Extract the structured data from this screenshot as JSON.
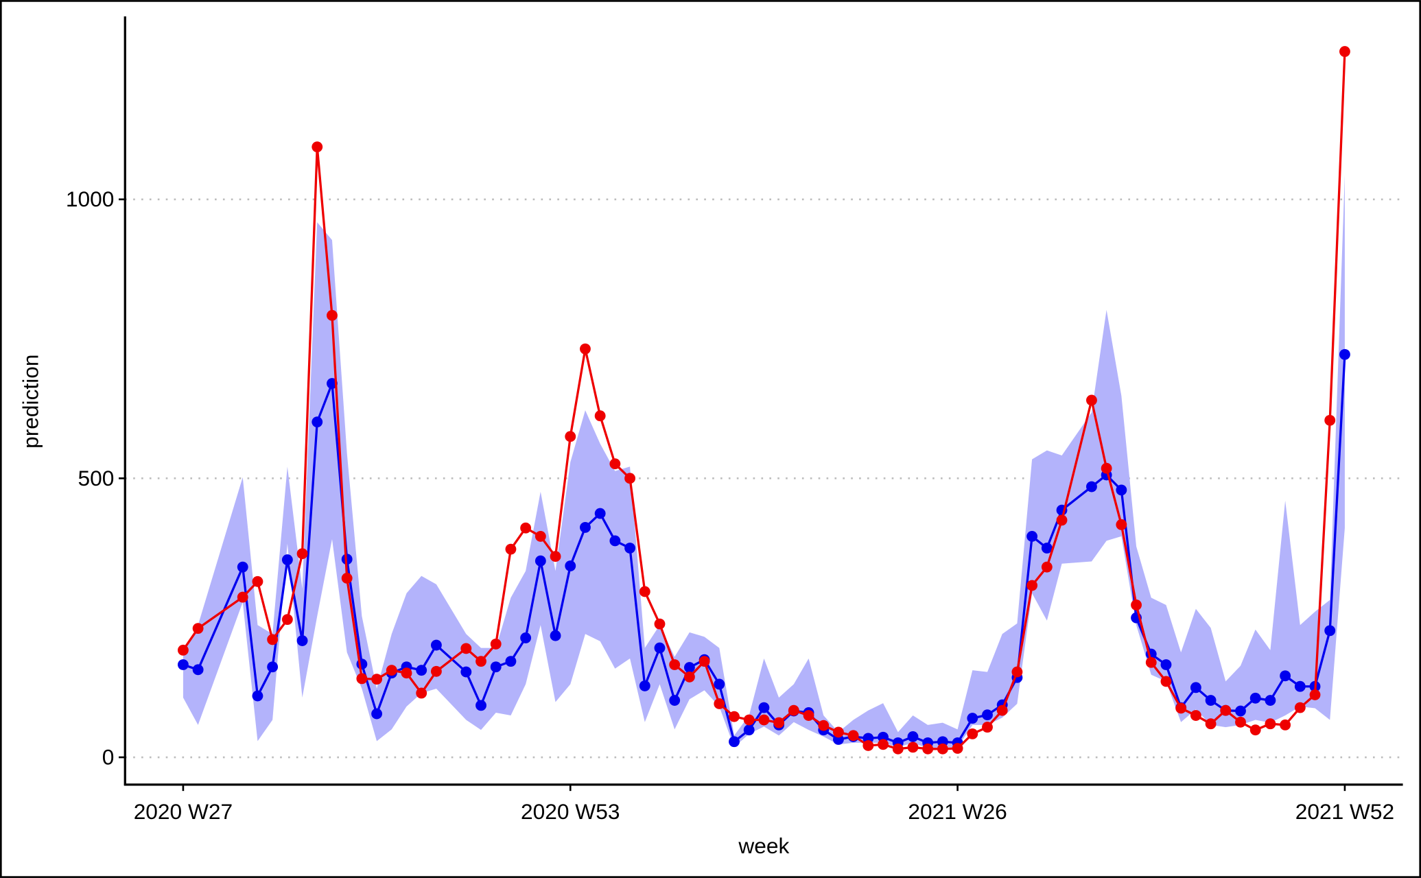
{
  "chart_data": {
    "type": "line",
    "x_label": "week",
    "y_label": "prediction",
    "x": [
      "2020 W27",
      "2020 W28",
      "2020 W31",
      "2020 W32",
      "2020 W33",
      "2020 W34",
      "2020 W35",
      "2020 W36",
      "2020 W37",
      "2020 W38",
      "2020 W39",
      "2020 W40",
      "2020 W41",
      "2020 W42",
      "2020 W43",
      "2020 W44",
      "2020 W46",
      "2020 W47",
      "2020 W48",
      "2020 W49",
      "2020 W50",
      "2020 W51",
      "2020 W52",
      "2020 W53",
      "2021 W01",
      "2021 W02",
      "2021 W03",
      "2021 W04",
      "2021 W05",
      "2021 W06",
      "2021 W07",
      "2021 W08",
      "2021 W09",
      "2021 W10",
      "2021 W11",
      "2021 W12",
      "2021 W13",
      "2021 W14",
      "2021 W15",
      "2021 W16",
      "2021 W17",
      "2021 W18",
      "2021 W19",
      "2021 W20",
      "2021 W21",
      "2021 W22",
      "2021 W23",
      "2021 W24",
      "2021 W25",
      "2021 W26",
      "2021 W27",
      "2021 W28",
      "2021 W29",
      "2021 W30",
      "2021 W31",
      "2021 W32",
      "2021 W33",
      "2021 W35",
      "2021 W36",
      "2021 W37",
      "2021 W38",
      "2021 W39",
      "2021 W40",
      "2021 W41",
      "2021 W42",
      "2021 W43",
      "2021 W44",
      "2021 W45",
      "2021 W46",
      "2021 W47",
      "2021 W48",
      "2021 W49",
      "2021 W50",
      "2021 W51",
      "2021 W52"
    ],
    "xticks": [
      "2020 W27",
      "2020 W53",
      "2021 W26",
      "2021 W52"
    ],
    "band": {
      "color": "#b3b3fb",
      "upper": [
        188,
        237,
        502,
        237,
        221,
        521,
        302,
        959,
        927,
        545,
        253,
        123,
        221,
        294,
        325,
        310,
        221,
        196,
        196,
        286,
        334,
        476,
        334,
        529,
        622,
        562,
        513,
        521,
        196,
        237,
        180,
        224,
        216,
        196,
        39,
        75,
        177,
        107,
        131,
        177,
        75,
        45,
        67,
        84,
        97,
        45,
        75,
        58,
        62,
        50,
        156,
        153,
        221,
        240,
        534,
        550,
        541,
        618,
        802,
        648,
        378,
        286,
        273,
        188,
        266,
        232,
        136,
        164,
        229,
        192,
        460,
        237,
        261,
        282,
        1044
      ],
      "lower": [
        107,
        58,
        278,
        29,
        67,
        383,
        107,
        253,
        391,
        188,
        123,
        29,
        50,
        91,
        115,
        123,
        67,
        49,
        80,
        75,
        131,
        237,
        99,
        131,
        221,
        208,
        159,
        177,
        63,
        131,
        50,
        104,
        120,
        91,
        18,
        42,
        55,
        39,
        63,
        49,
        37,
        23,
        26,
        26,
        26,
        18,
        26,
        16,
        18,
        18,
        58,
        58,
        71,
        96,
        294,
        245,
        347,
        351,
        388,
        396,
        237,
        148,
        136,
        63,
        86,
        58,
        54,
        58,
        67,
        62,
        75,
        91,
        88,
        67,
        411
      ]
    },
    "series": [
      {
        "color": "#0000ee",
        "values": [
          166,
          157,
          341,
          110,
          162,
          354,
          209,
          601,
          670,
          355,
          167,
          78,
          151,
          162,
          156,
          201,
          153,
          93,
          162,
          172,
          214,
          352,
          218,
          343,
          412,
          437,
          388,
          375,
          128,
          196,
          102,
          161,
          175,
          131,
          28,
          49,
          89,
          58,
          83,
          80,
          49,
          32,
          37,
          34,
          36,
          26,
          37,
          26,
          28,
          26,
          70,
          76,
          94,
          143,
          396,
          375,
          443,
          485,
          506,
          479,
          250,
          185,
          166,
          89,
          125,
          102,
          84,
          83,
          106,
          102,
          146,
          127,
          127,
          227,
          722
        ]
      },
      {
        "color": "#ee0000",
        "values": [
          192,
          231,
          287,
          315,
          211,
          247,
          365,
          1094,
          792,
          321,
          141,
          140,
          156,
          151,
          115,
          154,
          195,
          172,
          203,
          373,
          411,
          396,
          360,
          575,
          732,
          612,
          526,
          500,
          297,
          239,
          166,
          144,
          172,
          96,
          73,
          67,
          67,
          62,
          84,
          75,
          57,
          45,
          39,
          21,
          23,
          15,
          18,
          15,
          15,
          16,
          42,
          54,
          84,
          153,
          308,
          341,
          425,
          640,
          518,
          417,
          273,
          170,
          136,
          88,
          75,
          60,
          84,
          63,
          49,
          60,
          58,
          89,
          112,
          604,
          1265
        ]
      }
    ],
    "ylim": [
      -49,
      1328
    ],
    "yticks": [
      0,
      500,
      1000
    ],
    "grid": true
  }
}
